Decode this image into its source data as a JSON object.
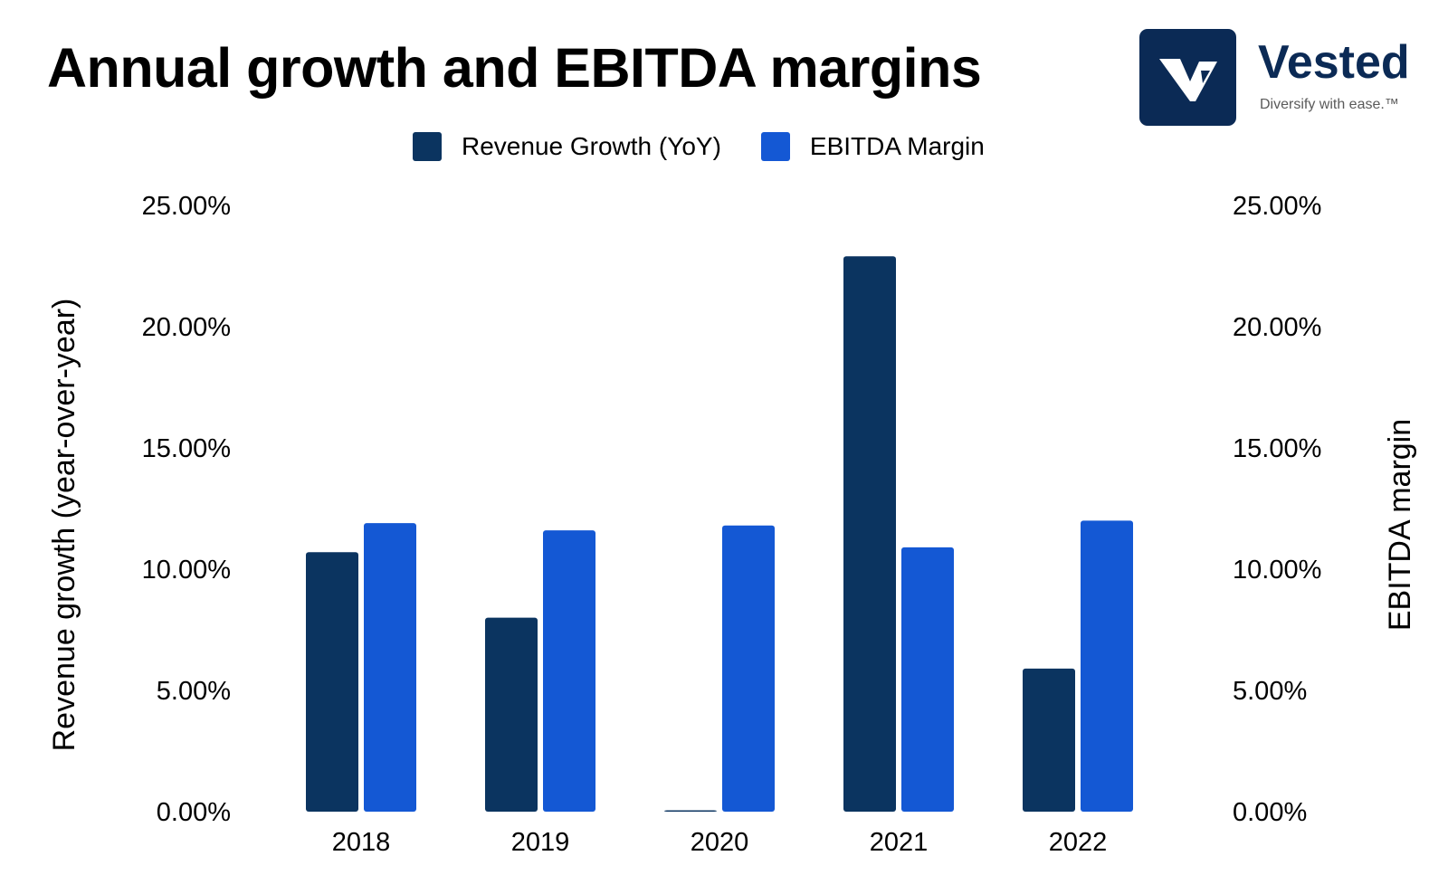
{
  "header": {
    "title": "Annual growth and EBITDA margins"
  },
  "brand": {
    "name": "Vested",
    "tagline": "Diversify with ease.™",
    "logo_icon": "vested-v-logo-icon",
    "colors": {
      "logo_bg": "#0b2a55",
      "name": "#0b2a55"
    }
  },
  "chart_data": {
    "type": "bar",
    "title": "Annual growth and EBITDA margins",
    "categories": [
      "2018",
      "2019",
      "2020",
      "2021",
      "2022"
    ],
    "series": [
      {
        "name": "Revenue Growth (YoY)",
        "values": [
          10.7,
          8.0,
          0.05,
          22.9,
          5.9
        ],
        "color": "#0b3460",
        "axis": "left"
      },
      {
        "name": "EBITDA Margin",
        "values": [
          11.9,
          11.6,
          11.8,
          10.9,
          12.0
        ],
        "color": "#1458d4",
        "axis": "right"
      }
    ],
    "ylabel": "Revenue growth (year-over-year)",
    "y2label": "EBITDA margin",
    "ylim": [
      0,
      25
    ],
    "y2lim": [
      0,
      25
    ],
    "yticks": [
      "0.00%",
      "5.00%",
      "10.00%",
      "15.00%",
      "20.00%",
      "25.00%"
    ],
    "y2ticks": [
      "0.00%",
      "5.00%",
      "10.00%",
      "15.00%",
      "20.00%",
      "25.00%"
    ],
    "grid": false,
    "legend_position": "top-center"
  }
}
